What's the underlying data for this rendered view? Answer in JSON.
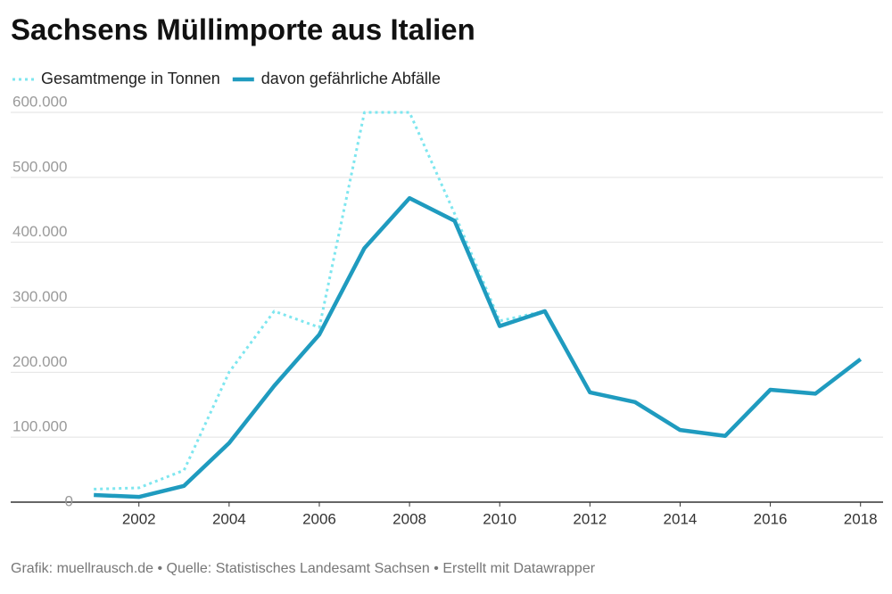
{
  "chart_data": {
    "type": "line",
    "title": "Sachsens Müllimporte aus Italien",
    "source": "Grafik: muellrausch.de • Quelle: Statistisches Landesamt Sachsen • Erstellt mit Datawrapper",
    "x": [
      2001,
      2002,
      2003,
      2004,
      2005,
      2006,
      2007,
      2008,
      2009,
      2010,
      2011,
      2012,
      2013,
      2014,
      2015,
      2016,
      2017,
      2018
    ],
    "series": [
      {
        "name": "Gesamtmenge in Tonnen",
        "color": "#7ee6ef",
        "dash": "dotted",
        "values": [
          20000,
          22000,
          49000,
          200000,
          294000,
          269000,
          600000,
          600000,
          444000,
          279000,
          294000,
          169000,
          154000,
          111000,
          102000,
          173000,
          167000,
          220000
        ]
      },
      {
        "name": "davon gefährliche Abfälle",
        "color": "#1f9bbf",
        "dash": "solid",
        "values": [
          11000,
          8000,
          25000,
          91000,
          179000,
          258000,
          391000,
          468000,
          433000,
          271000,
          294000,
          169000,
          154000,
          111000,
          102000,
          173000,
          167000,
          220000
        ]
      }
    ],
    "xlim": [
      2000.7,
      2018.5
    ],
    "xticks": [
      2002,
      2004,
      2006,
      2008,
      2010,
      2012,
      2014,
      2016,
      2018
    ],
    "ylim": [
      0,
      600000
    ],
    "yticks": [
      0,
      {
        "value": 100000,
        "label": "100.000"
      },
      {
        "value": 200000,
        "label": "200.000"
      },
      {
        "value": 300000,
        "label": "300.000"
      },
      {
        "value": 400000,
        "label": "400.000"
      },
      {
        "value": 500000,
        "label": "500.000"
      },
      {
        "value": 600000,
        "label": "600.000"
      }
    ],
    "grid": true,
    "legend": "top"
  }
}
